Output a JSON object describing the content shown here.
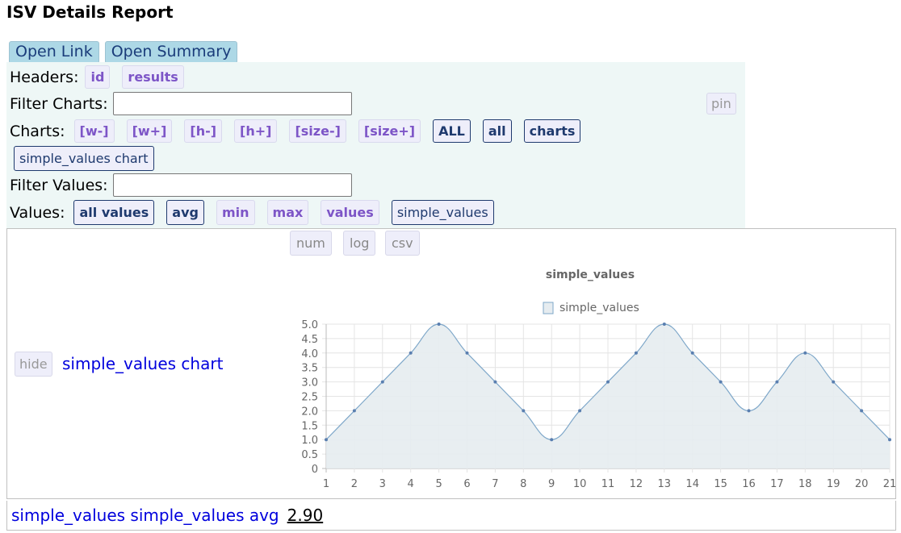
{
  "page_title": "ISV Details Report",
  "top_links": [
    "Open Link",
    "Open Summary"
  ],
  "headers": {
    "label": "Headers:",
    "items": [
      "id",
      "results"
    ]
  },
  "filter_charts": {
    "label": "Filter Charts:",
    "value": ""
  },
  "pin_label": "pin",
  "charts": {
    "label": "Charts:",
    "items": [
      "[w-]",
      "[w+]",
      "[h-]",
      "[h+]",
      "[size-]",
      "[size+]",
      "ALL",
      "all",
      "charts"
    ],
    "chart_button": "simple_values chart"
  },
  "filter_values": {
    "label": "Filter Values:",
    "value": ""
  },
  "values": {
    "label": "Values:",
    "items": [
      "all values",
      "avg",
      "min",
      "max",
      "values",
      "simple_values"
    ]
  },
  "chart_tools": [
    "num",
    "log",
    "csv"
  ],
  "hide_label": "hide",
  "chart_panel_title": "simple_values chart",
  "footer": {
    "text": "simple_values simple_values avg",
    "value": "2.90"
  },
  "colors": {
    "line": "#7ea7c9",
    "fill": "#e6ecf0",
    "point": "#5a7fb0",
    "link": "#0000dd"
  },
  "chart_data": {
    "type": "area",
    "title": "simple_values",
    "legend": "top-center",
    "grid": true,
    "x": [
      1,
      2,
      3,
      4,
      5,
      6,
      7,
      8,
      9,
      10,
      11,
      12,
      13,
      14,
      15,
      16,
      17,
      18,
      19,
      20,
      21
    ],
    "series": [
      {
        "name": "simple_values",
        "values": [
          1,
          2,
          3,
          4,
          5,
          4,
          3,
          2,
          1,
          2,
          3,
          4,
          5,
          4,
          3,
          2,
          3,
          4,
          3,
          2,
          1
        ]
      }
    ],
    "ylim": [
      0,
      5
    ],
    "yticks": [
      "0",
      "0.5",
      "1.0",
      "1.5",
      "2.0",
      "2.5",
      "3.0",
      "3.5",
      "4.0",
      "4.5",
      "5.0"
    ],
    "xlabel": "",
    "ylabel": ""
  }
}
